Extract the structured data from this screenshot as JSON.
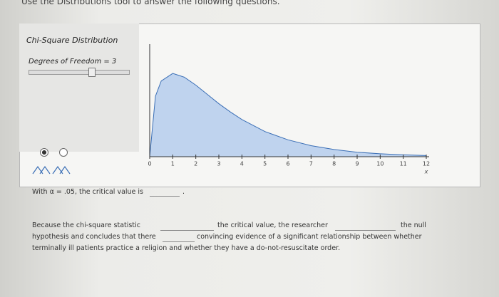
{
  "header": {
    "instruction": "Use the Distributions tool to answer the following questions."
  },
  "panel": {
    "title": "Chi-Square Distribution",
    "parameter": "Degrees of Freedom = 3"
  },
  "chart_data": {
    "type": "area",
    "color": "#bfd3ee",
    "line_color": "#3b6fb6",
    "x": [
      0,
      0.25,
      0.5,
      1,
      1.5,
      2,
      2.5,
      3,
      3.5,
      4,
      5,
      6,
      7,
      8,
      9,
      10,
      11,
      12
    ],
    "values": [
      0,
      0.176,
      0.22,
      0.242,
      0.231,
      0.208,
      0.181,
      0.154,
      0.13,
      0.108,
      0.073,
      0.049,
      0.032,
      0.021,
      0.013,
      0.0085,
      0.0054,
      0.0034
    ],
    "xlim": [
      0,
      12
    ],
    "xticks": [
      0,
      1,
      2,
      3,
      4,
      5,
      6,
      7,
      8,
      9,
      10,
      11,
      12
    ],
    "ylim": [
      0,
      0.3
    ],
    "x_label": "x"
  },
  "question1": {
    "before": "With α = .05, the critical value is",
    "after": "."
  },
  "question2": {
    "lines": [
      "Because the chi-square statistic",
      "the critical value, the researcher",
      "the null",
      "hypothesis and concludes that there",
      "convincing evidence of a significant relationship between whether",
      "terminally ill patients practice a religion and whether they have a do-not-resuscitate order."
    ]
  }
}
